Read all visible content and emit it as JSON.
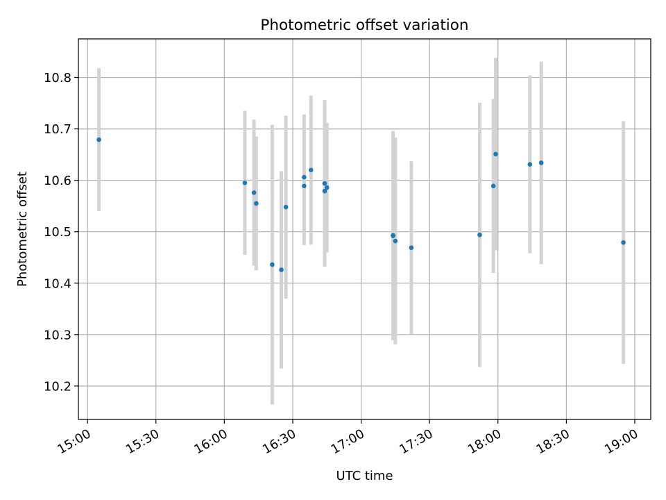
{
  "chart_data": {
    "type": "scatter",
    "title": "Photometric offset variation",
    "xlabel": "UTC time",
    "ylabel": "Photometric offset",
    "x_tick_labels": [
      "15:00",
      "15:30",
      "16:00",
      "16:30",
      "17:00",
      "17:30",
      "18:00",
      "18:30",
      "19:00"
    ],
    "y_tick_labels": [
      "10.2",
      "10.3",
      "10.4",
      "10.5",
      "10.6",
      "10.7",
      "10.8"
    ],
    "xlim": [
      "14:56",
      "19:07"
    ],
    "ylim": [
      10.135,
      10.875
    ],
    "grid": true,
    "colors": {
      "points": "#1f77b4",
      "error_bars": "#d3d3d3",
      "grid": "#b0b0b0"
    },
    "series": [
      {
        "points": [
          {
            "x": "15:05",
            "y": 10.679,
            "err": 0.139
          },
          {
            "x": "16:09",
            "y": 10.595,
            "err": 0.14
          },
          {
            "x": "16:13",
            "y": 10.576,
            "err": 0.142
          },
          {
            "x": "16:14",
            "y": 10.555,
            "err": 0.13
          },
          {
            "x": "16:21",
            "y": 10.436,
            "err": 0.272
          },
          {
            "x": "16:25",
            "y": 10.426,
            "err": 0.192
          },
          {
            "x": "16:27",
            "y": 10.548,
            "err": 0.178
          },
          {
            "x": "16:35",
            "y": 10.606,
            "err": 0.122
          },
          {
            "x": "16:35",
            "y": 10.589,
            "err": 0.115
          },
          {
            "x": "16:38",
            "y": 10.62,
            "err": 0.145
          },
          {
            "x": "16:44",
            "y": 10.594,
            "err": 0.162
          },
          {
            "x": "16:44",
            "y": 10.579,
            "err": 0.145
          },
          {
            "x": "16:45",
            "y": 10.586,
            "err": 0.126
          },
          {
            "x": "17:14",
            "y": 10.492,
            "err": 0.203
          },
          {
            "x": "17:14",
            "y": 10.493,
            "err": 0.203
          },
          {
            "x": "17:15",
            "y": 10.482,
            "err": 0.201
          },
          {
            "x": "17:22",
            "y": 10.469,
            "err": 0.168
          },
          {
            "x": "17:52",
            "y": 10.494,
            "err": 0.257
          },
          {
            "x": "17:58",
            "y": 10.589,
            "err": 0.169
          },
          {
            "x": "17:59",
            "y": 10.651,
            "err": 0.187
          },
          {
            "x": "18:14",
            "y": 10.631,
            "err": 0.173
          },
          {
            "x": "18:19",
            "y": 10.634,
            "err": 0.197
          },
          {
            "x": "18:55",
            "y": 10.479,
            "err": 0.236
          }
        ]
      }
    ]
  }
}
